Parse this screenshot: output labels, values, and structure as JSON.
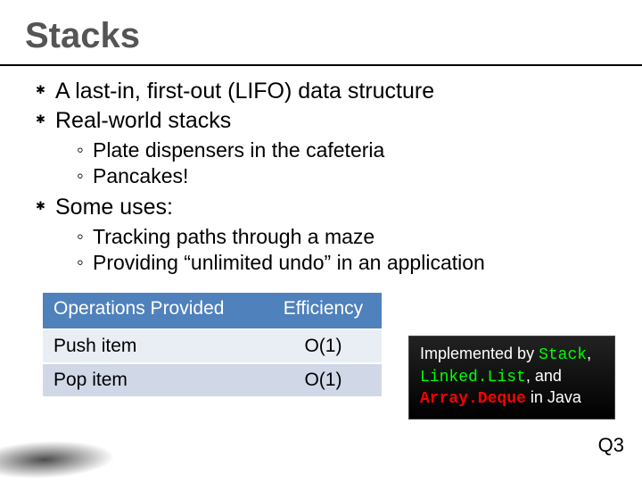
{
  "title": "Stacks",
  "bullets": {
    "b1": "A last-in, first-out (LIFO) data structure",
    "b2": "Real-world stacks",
    "b2a": "Plate dispensers in the cafeteria",
    "b2b": "Pancakes!",
    "b3": "Some uses:",
    "b3a": "Tracking paths through a maze",
    "b3b": "Providing “unlimited undo” in an application"
  },
  "table": {
    "header_ops": "Operations Provided",
    "header_eff": "Efficiency",
    "rows": [
      {
        "op": "Push item",
        "eff": "O(1)"
      },
      {
        "op": "Pop item",
        "eff": "O(1)"
      }
    ],
    "header_bg": "#4f81bd",
    "header_fg": "#ffffff",
    "row_bg_odd": "#e9edf4",
    "row_bg_even": "#d0d8e8"
  },
  "note": {
    "pre": "Implemented by ",
    "code_stack": "Stack",
    "sep1": ", ",
    "code_linked": "Linked.List",
    "sep2": ", and ",
    "code_deque": "Array.Deque",
    "post": " in Java",
    "bg": "#000000",
    "fg": "#ffffff",
    "code1_color": "#00ff00",
    "code2_color": "#ff0000"
  },
  "footer": "Q3",
  "colors": {
    "title": "#555555",
    "background": "#ffffff",
    "text": "#000000",
    "underline": "#000000"
  },
  "fontsize": {
    "title": 40,
    "lvl1": 25,
    "lvl2": 23,
    "table": 21,
    "note": 18,
    "footer": 22
  }
}
